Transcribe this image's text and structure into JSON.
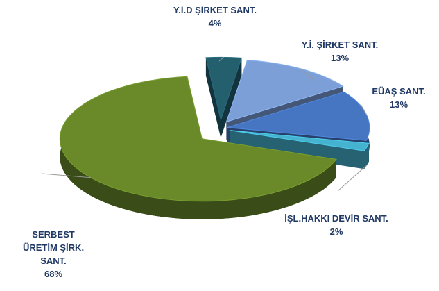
{
  "chart_data": {
    "type": "pie",
    "categories": [
      "Y.İ.D ŞİRKET SANT.",
      "Y.İ. ŞİRKET SANT.",
      "EÜAŞ SANT.",
      "İŞL.HAKKI DEVİR SANT.",
      "SERBEST ÜRETİM ŞİRK. SANT."
    ],
    "values": [
      4,
      13,
      13,
      2,
      68
    ],
    "value_labels": [
      "4%",
      "13%",
      "13%",
      "2%",
      "68%"
    ],
    "colors": [
      "#245f6e",
      "#7b9fd6",
      "#4676c2",
      "#45b3cf",
      "#6a8a2a"
    ]
  }
}
